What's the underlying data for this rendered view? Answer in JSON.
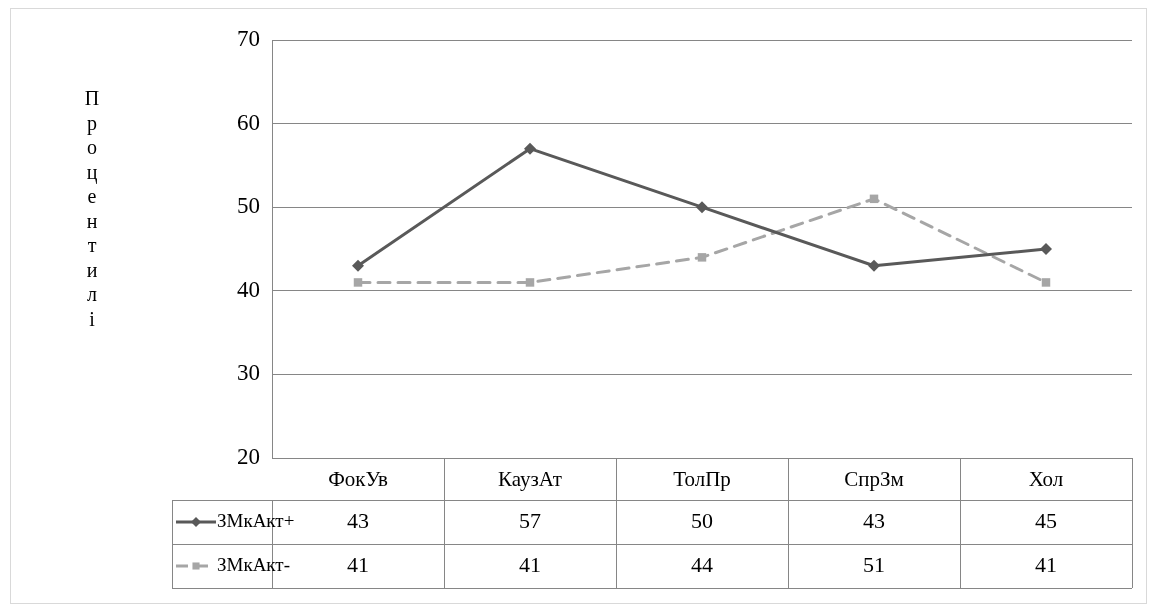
{
  "chart_data": {
    "type": "line",
    "ylabel": "Процентилі",
    "categories": [
      "ФокУв",
      "КаузАт",
      "ТолПр",
      "СпрЗм",
      "Хол"
    ],
    "series": [
      {
        "name": "ЗМкАкт+",
        "color": "#595959",
        "values": [
          43,
          57,
          50,
          43,
          45
        ],
        "marker": "diamond",
        "line_style": "solid"
      },
      {
        "name": "ЗМкАкт-",
        "color": "#a6a6a6",
        "values": [
          41,
          41,
          44,
          51,
          41
        ],
        "marker": "square",
        "line_style": "dashed"
      }
    ],
    "ylim": [
      20,
      70
    ],
    "yticks": [
      20,
      30,
      40,
      50,
      60,
      70
    ],
    "grid": "y",
    "legend": "bottom",
    "data_labels": true
  }
}
